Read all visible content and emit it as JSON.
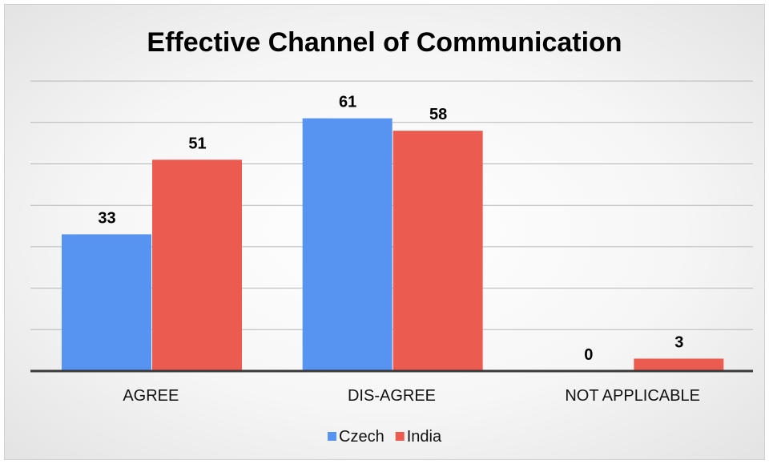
{
  "chart_data": {
    "type": "bar",
    "title": "Effective Channel of Communication",
    "categories": [
      "AGREE",
      "DIS-AGREE",
      "NOT APPLICABLE"
    ],
    "series": [
      {
        "name": "Czech",
        "values": [
          33,
          61,
          0
        ],
        "color": "#5794f2"
      },
      {
        "name": "India",
        "values": [
          51,
          58,
          3
        ],
        "color": "#ec5b50"
      }
    ],
    "ylim": [
      0,
      70
    ],
    "grid": true,
    "legend": "bottom"
  }
}
